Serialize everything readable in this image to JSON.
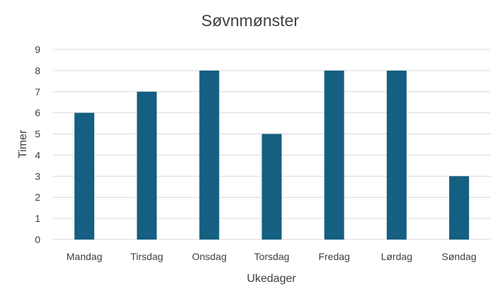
{
  "chart_data": {
    "type": "bar",
    "title": "Søvnmønster",
    "xlabel": "Ukedager",
    "ylabel": "Timer",
    "categories": [
      "Mandag",
      "Tirsdag",
      "Onsdag",
      "Torsdag",
      "Fredag",
      "Lørdag",
      "Søndag"
    ],
    "values": [
      6,
      7,
      8,
      5,
      8,
      8,
      3
    ],
    "ylim": [
      0,
      9
    ],
    "yticks": [
      0,
      1,
      2,
      3,
      4,
      5,
      6,
      7,
      8,
      9
    ],
    "grid": true,
    "legend": "none",
    "bar_color": "#155f82",
    "text_color": "#404040",
    "grid_color": "#d9d9d9"
  }
}
